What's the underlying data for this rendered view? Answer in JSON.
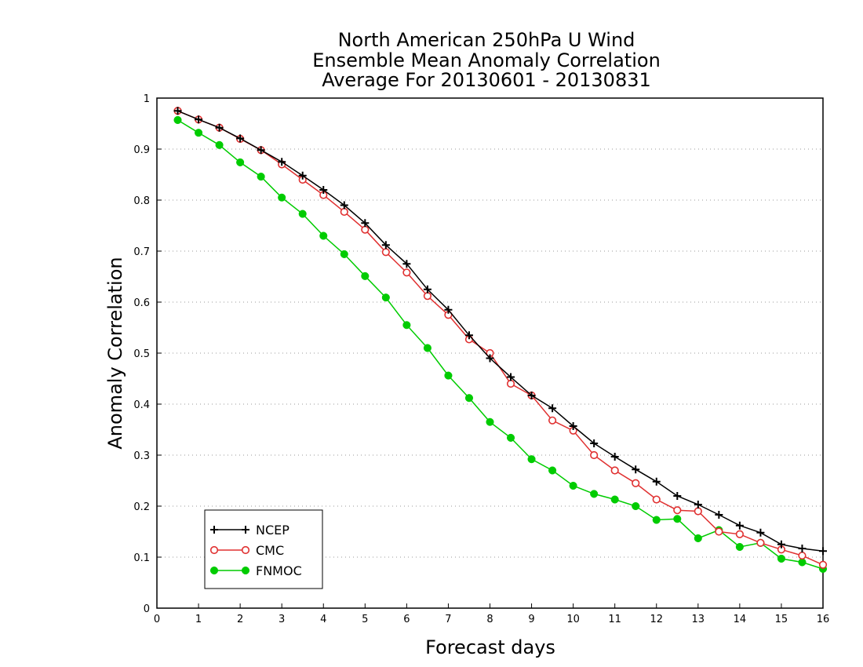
{
  "chart_data": {
    "type": "line",
    "title_lines": [
      "North American 250hPa U Wind",
      "Ensemble Mean Anomaly Correlation",
      "Average For 20130601 - 20130831"
    ],
    "xlabel": "Forecast days",
    "ylabel": "Anomaly Correlation",
    "xlim": [
      0,
      16
    ],
    "ylim": [
      0,
      1
    ],
    "x_ticks": [
      "0",
      "1",
      "2",
      "3",
      "4",
      "5",
      "6",
      "7",
      "8",
      "9",
      "10",
      "11",
      "12",
      "13",
      "14",
      "15",
      "16"
    ],
    "y_ticks": [
      "0",
      "0.1",
      "0.2",
      "0.3",
      "0.4",
      "0.5",
      "0.6",
      "0.7",
      "0.8",
      "0.9",
      "1"
    ],
    "grid": "horizontal dotted",
    "legend_position": "bottom-left",
    "x": [
      0.5,
      1,
      1.5,
      2,
      2.5,
      3,
      3.5,
      4,
      4.5,
      5,
      5.5,
      6,
      6.5,
      7,
      7.5,
      8,
      8.5,
      9,
      9.5,
      10,
      10.5,
      11,
      11.5,
      12,
      12.5,
      13,
      13.5,
      14,
      14.5,
      15,
      15.5,
      16
    ],
    "series": [
      {
        "name": "NCEP",
        "color": "#000000",
        "marker": "plus",
        "values": [
          0.975,
          0.958,
          0.942,
          0.921,
          0.898,
          0.875,
          0.848,
          0.82,
          0.79,
          0.755,
          0.712,
          0.675,
          0.625,
          0.585,
          0.535,
          0.49,
          0.453,
          0.417,
          0.392,
          0.357,
          0.323,
          0.297,
          0.272,
          0.248,
          0.22,
          0.203,
          0.183,
          0.162,
          0.148,
          0.125,
          0.117,
          0.112
        ]
      },
      {
        "name": "CMC",
        "color": "#e03030",
        "marker": "open-circle",
        "values": [
          0.975,
          0.958,
          0.942,
          0.92,
          0.898,
          0.87,
          0.84,
          0.81,
          0.777,
          0.742,
          0.698,
          0.658,
          0.612,
          0.575,
          0.527,
          0.5,
          0.44,
          0.417,
          0.368,
          0.348,
          0.3,
          0.27,
          0.245,
          0.213,
          0.192,
          0.19,
          0.15,
          0.145,
          0.128,
          0.115,
          0.103,
          0.085
        ]
      },
      {
        "name": "FNMOC",
        "color": "#00cc00",
        "marker": "filled-circle",
        "values": [
          0.957,
          0.932,
          0.908,
          0.874,
          0.846,
          0.805,
          0.773,
          0.73,
          0.694,
          0.651,
          0.609,
          0.555,
          0.51,
          0.456,
          0.412,
          0.365,
          0.334,
          0.292,
          0.27,
          0.24,
          0.224,
          0.213,
          0.2,
          0.173,
          0.175,
          0.137,
          0.153,
          0.12,
          0.128,
          0.097,
          0.09,
          0.077
        ]
      }
    ]
  }
}
